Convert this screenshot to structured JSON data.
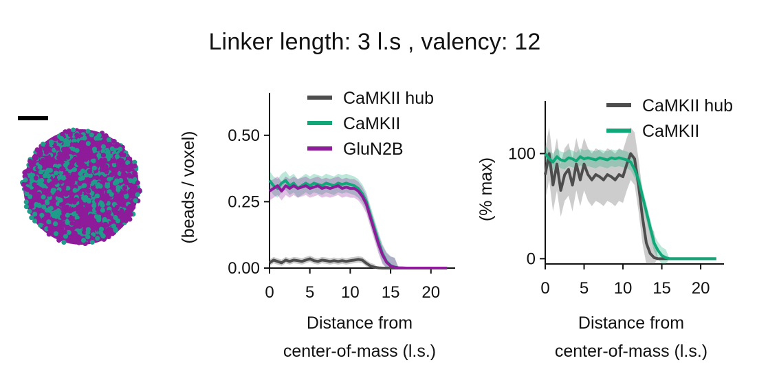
{
  "title": "Linker length: 3 l.s , valency: 12",
  "colors": {
    "camkii_hub": "#4d4d4d",
    "camkii": "#10a878",
    "glun2b": "#8e1b9a",
    "axis": "#111111"
  },
  "condensate_image": {
    "description_icon": "condensate-snapshot",
    "colors": [
      "#8e1b9a",
      "#1f9c8a"
    ]
  },
  "chart_data": [
    {
      "type": "line",
      "xlabel": [
        "Distance from",
        "center-of-mass (l.s.)"
      ],
      "ylabel": "(beads / voxel)",
      "xlim": [
        0,
        23
      ],
      "ylim": [
        0,
        0.66
      ],
      "xticks": [
        0,
        5,
        10,
        15,
        20
      ],
      "xtick_labels": [
        "0",
        "5",
        "10",
        "15",
        "20"
      ],
      "yticks": [
        0.0,
        0.25,
        0.5
      ],
      "ytick_labels": [
        "0.00",
        "0.25",
        "0.50"
      ],
      "legend": "top-right",
      "series": [
        {
          "name": "CaMKII hub",
          "color": "#4d4d4d",
          "x": [
            0,
            0.5,
            1,
            1.5,
            2,
            2.5,
            3,
            3.5,
            4,
            4.5,
            5,
            5.5,
            6,
            6.5,
            7,
            7.5,
            8,
            8.5,
            9,
            9.5,
            10,
            10.5,
            11,
            11.5,
            12,
            12.5,
            13,
            13.5,
            14,
            14.5,
            15,
            16,
            17,
            18,
            19,
            20,
            21,
            22
          ],
          "y": [
            0.02,
            0.03,
            0.025,
            0.02,
            0.03,
            0.025,
            0.03,
            0.028,
            0.025,
            0.03,
            0.035,
            0.028,
            0.025,
            0.03,
            0.028,
            0.025,
            0.028,
            0.025,
            0.028,
            0.025,
            0.028,
            0.03,
            0.033,
            0.03,
            0.018,
            0.008,
            0.003,
            0.001,
            0,
            0,
            0,
            0,
            0,
            0,
            0,
            0,
            0,
            0
          ],
          "band": 0.012
        },
        {
          "name": "CaMKII",
          "color": "#10a878",
          "x": [
            0,
            0.5,
            1,
            1.5,
            2,
            2.5,
            3,
            3.5,
            4,
            4.5,
            5,
            5.5,
            6,
            6.5,
            7,
            7.5,
            8,
            8.5,
            9,
            9.5,
            10,
            10.5,
            11,
            11.5,
            12,
            12.5,
            13,
            13.5,
            14,
            14.5,
            15,
            15.5,
            16,
            17,
            18,
            19,
            20,
            21,
            22
          ],
          "y": [
            0.33,
            0.31,
            0.3,
            0.32,
            0.33,
            0.31,
            0.32,
            0.3,
            0.31,
            0.32,
            0.31,
            0.32,
            0.315,
            0.31,
            0.32,
            0.315,
            0.31,
            0.32,
            0.315,
            0.32,
            0.315,
            0.31,
            0.3,
            0.28,
            0.25,
            0.2,
            0.15,
            0.1,
            0.055,
            0.025,
            0.01,
            0.004,
            0.001,
            0,
            0,
            0,
            0,
            0,
            0
          ],
          "band": 0.035
        },
        {
          "name": "GluN2B",
          "color": "#8e1b9a",
          "x": [
            0,
            0.5,
            1,
            1.5,
            2,
            2.5,
            3,
            3.5,
            4,
            4.5,
            5,
            5.5,
            6,
            6.5,
            7,
            7.5,
            8,
            8.5,
            9,
            9.5,
            10,
            10.5,
            11,
            11.5,
            12,
            12.5,
            13,
            13.5,
            14,
            14.5,
            15,
            15.5,
            16,
            17,
            18,
            19,
            20,
            21,
            22
          ],
          "y": [
            0.29,
            0.3,
            0.31,
            0.29,
            0.31,
            0.3,
            0.31,
            0.3,
            0.305,
            0.31,
            0.3,
            0.305,
            0.31,
            0.3,
            0.305,
            0.3,
            0.305,
            0.31,
            0.3,
            0.305,
            0.3,
            0.3,
            0.29,
            0.27,
            0.24,
            0.19,
            0.14,
            0.09,
            0.05,
            0.022,
            0.008,
            0.003,
            0.001,
            0,
            0,
            0,
            0,
            0,
            0
          ],
          "band": 0.035
        }
      ]
    },
    {
      "type": "line",
      "xlabel": [
        "Distance from",
        "center-of-mass (l.s.)"
      ],
      "ylabel": "(% max)",
      "xlim": [
        0,
        23
      ],
      "ylim": [
        -5,
        150
      ],
      "xticks": [
        0,
        5,
        10,
        15,
        20
      ],
      "xtick_labels": [
        "0",
        "5",
        "10",
        "15",
        "20"
      ],
      "yticks": [
        0,
        100
      ],
      "ytick_labels": [
        "0",
        "100"
      ],
      "legend": "top-right",
      "series": [
        {
          "name": "CaMKII hub",
          "color": "#4d4d4d",
          "x": [
            0,
            0.5,
            1,
            1.5,
            2,
            2.5,
            3,
            3.5,
            4,
            4.5,
            5,
            5.5,
            6,
            6.5,
            7,
            7.5,
            8,
            8.5,
            9,
            9.5,
            10,
            10.5,
            11,
            11.5,
            12,
            12.5,
            13,
            13.5,
            14,
            14.5,
            15,
            16,
            17,
            18,
            19,
            20,
            21,
            22
          ],
          "y": [
            80,
            100,
            70,
            90,
            65,
            80,
            85,
            70,
            90,
            75,
            90,
            80,
            75,
            80,
            78,
            75,
            80,
            78,
            75,
            80,
            78,
            90,
            100,
            95,
            70,
            40,
            15,
            5,
            1,
            0,
            0,
            0,
            0,
            0,
            0,
            0,
            0,
            0
          ],
          "band": 25
        },
        {
          "name": "CaMKII",
          "color": "#10a878",
          "x": [
            0,
            0.5,
            1,
            1.5,
            2,
            2.5,
            3,
            3.5,
            4,
            4.5,
            5,
            5.5,
            6,
            6.5,
            7,
            7.5,
            8,
            8.5,
            9,
            9.5,
            10,
            10.5,
            11,
            11.5,
            12,
            12.5,
            13,
            13.5,
            14,
            14.5,
            15,
            15.5,
            16,
            17,
            18,
            19,
            20,
            21,
            22
          ],
          "y": [
            100,
            95,
            92,
            97,
            94,
            93,
            96,
            95,
            93,
            97,
            95,
            96,
            95,
            94,
            96,
            95,
            94,
            96,
            95,
            96,
            95,
            94,
            92,
            85,
            75,
            60,
            45,
            30,
            15,
            8,
            3,
            1,
            0,
            0,
            0,
            0,
            0,
            0,
            0
          ],
          "band": 8
        }
      ]
    }
  ]
}
